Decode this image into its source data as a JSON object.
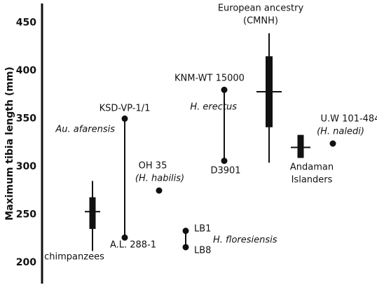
{
  "chart_data": {
    "type": "box",
    "ylabel": "Maximum tibia length (mm)",
    "ylim": [
      178,
      470
    ],
    "yticks": [
      200,
      250,
      300,
      350,
      400,
      450
    ],
    "groups": [
      {
        "name": [
          "chimpanzees"
        ],
        "low": 212,
        "q1": 235,
        "median": 253,
        "q3": 268,
        "high": 285
      },
      {
        "taxon": "Au. afarensis",
        "specimens": [
          {
            "label": "KSD-VP-1/1",
            "value": 350
          },
          {
            "label": "A.L. 288-1",
            "value": 226
          }
        ]
      },
      {
        "taxon": "(H. habilis)",
        "specimens": [
          {
            "label": "OH 35",
            "value": 275
          }
        ]
      },
      {
        "taxon": "H. floresiensis",
        "specimens": [
          {
            "label": "LB1",
            "value": 233
          },
          {
            "label": "LB8",
            "value": 216
          }
        ]
      },
      {
        "taxon": "H. erectus",
        "specimens": [
          {
            "label": "KNM-WT 15000",
            "value": 380
          },
          {
            "label": "D3901",
            "value": 306
          }
        ]
      },
      {
        "name": [
          "European ancestry",
          "(CMNH)"
        ],
        "low": 304,
        "q1": 341,
        "median": 378,
        "q3": 415,
        "high": 439
      },
      {
        "name": [
          "Andaman",
          "Islanders"
        ],
        "low": 309,
        "q1": 309,
        "median": 320,
        "q3": 333,
        "high": 333
      },
      {
        "taxon": "(H. naledi)",
        "specimens": [
          {
            "label": "U.W 101-484",
            "value": 324
          }
        ]
      }
    ]
  }
}
